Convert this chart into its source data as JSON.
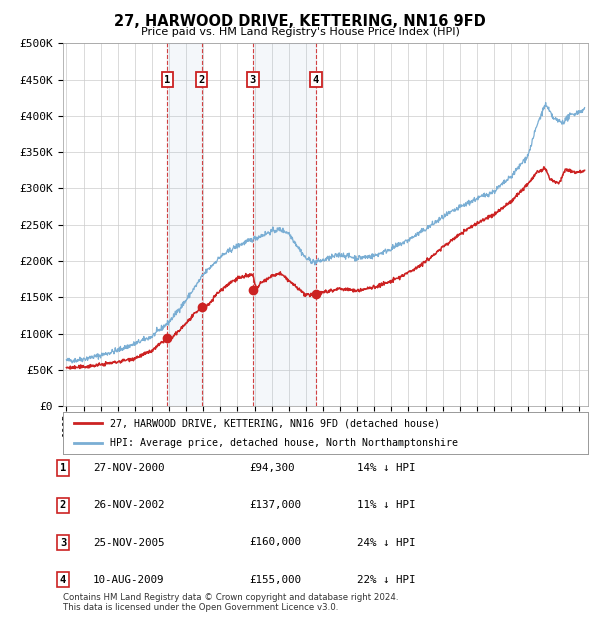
{
  "title": "27, HARWOOD DRIVE, KETTERING, NN16 9FD",
  "subtitle": "Price paid vs. HM Land Registry's House Price Index (HPI)",
  "ylim": [
    0,
    500000
  ],
  "yticks": [
    0,
    50000,
    100000,
    150000,
    200000,
    250000,
    300000,
    350000,
    400000,
    450000,
    500000
  ],
  "ytick_labels": [
    "£0",
    "£50K",
    "£100K",
    "£150K",
    "£200K",
    "£250K",
    "£300K",
    "£350K",
    "£400K",
    "£450K",
    "£500K"
  ],
  "hpi_color": "#7aaed4",
  "price_color": "#cc2222",
  "background_color": "#ffffff",
  "grid_color": "#cccccc",
  "sale_dates_num": [
    2000.9,
    2002.9,
    2005.9,
    2009.6
  ],
  "sale_prices": [
    94300,
    137000,
    160000,
    155000
  ],
  "sale_labels": [
    "1",
    "2",
    "3",
    "4"
  ],
  "transaction_table": [
    {
      "num": "1",
      "date": "27-NOV-2000",
      "price": "£94,300",
      "hpi": "14% ↓ HPI"
    },
    {
      "num": "2",
      "date": "26-NOV-2002",
      "price": "£137,000",
      "hpi": "11% ↓ HPI"
    },
    {
      "num": "3",
      "date": "25-NOV-2005",
      "price": "£160,000",
      "hpi": "24% ↓ HPI"
    },
    {
      "num": "4",
      "date": "10-AUG-2009",
      "price": "£155,000",
      "hpi": "22% ↓ HPI"
    }
  ],
  "legend_line1": "27, HARWOOD DRIVE, KETTERING, NN16 9FD (detached house)",
  "legend_line2": "HPI: Average price, detached house, North Northamptonshire",
  "footnote": "Contains HM Land Registry data © Crown copyright and database right 2024.\nThis data is licensed under the Open Government Licence v3.0.",
  "xmin": 1994.8,
  "xmax": 2025.5
}
